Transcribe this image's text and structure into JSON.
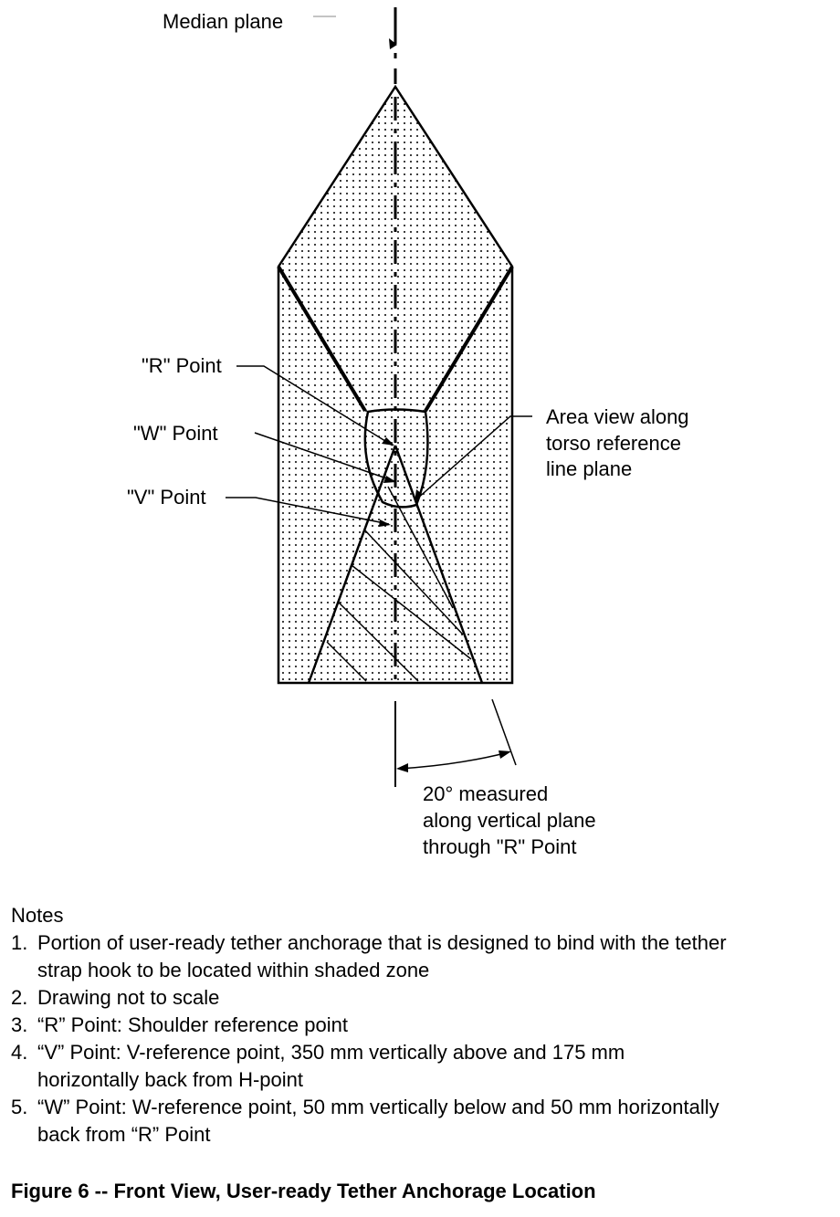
{
  "labels": {
    "median_plane": "Median plane",
    "r_point": "\"R\" Point",
    "w_point": "\"W\" Point",
    "v_point": "\"V\" Point",
    "area_view": [
      "Area view along",
      "torso reference",
      "line plane"
    ],
    "angle_note": [
      "20° measured",
      "along vertical plane",
      "through \"R\" Point"
    ]
  },
  "notes": {
    "heading": "Notes",
    "items": [
      {
        "num": "1.",
        "lines": [
          "Portion of user-ready tether anchorage that is designed to bind with the tether",
          "strap hook to be located within shaded zone"
        ]
      },
      {
        "num": "2.",
        "lines": [
          "Drawing not to scale"
        ]
      },
      {
        "num": "3.",
        "lines": [
          "“R” Point:  Shoulder reference point"
        ]
      },
      {
        "num": "4.",
        "lines": [
          "“V” Point:  V-reference point, 350 mm vertically above and 175 mm",
          "horizontally back from H-point"
        ]
      },
      {
        "num": "5.",
        "lines": [
          "“W” Point:  W-reference point, 50 mm vertically below and 50 mm horizontally",
          "back from “R” Point"
        ]
      }
    ]
  },
  "caption": "Figure 6 -- Front View, User-ready Tether Anchorage Location"
}
